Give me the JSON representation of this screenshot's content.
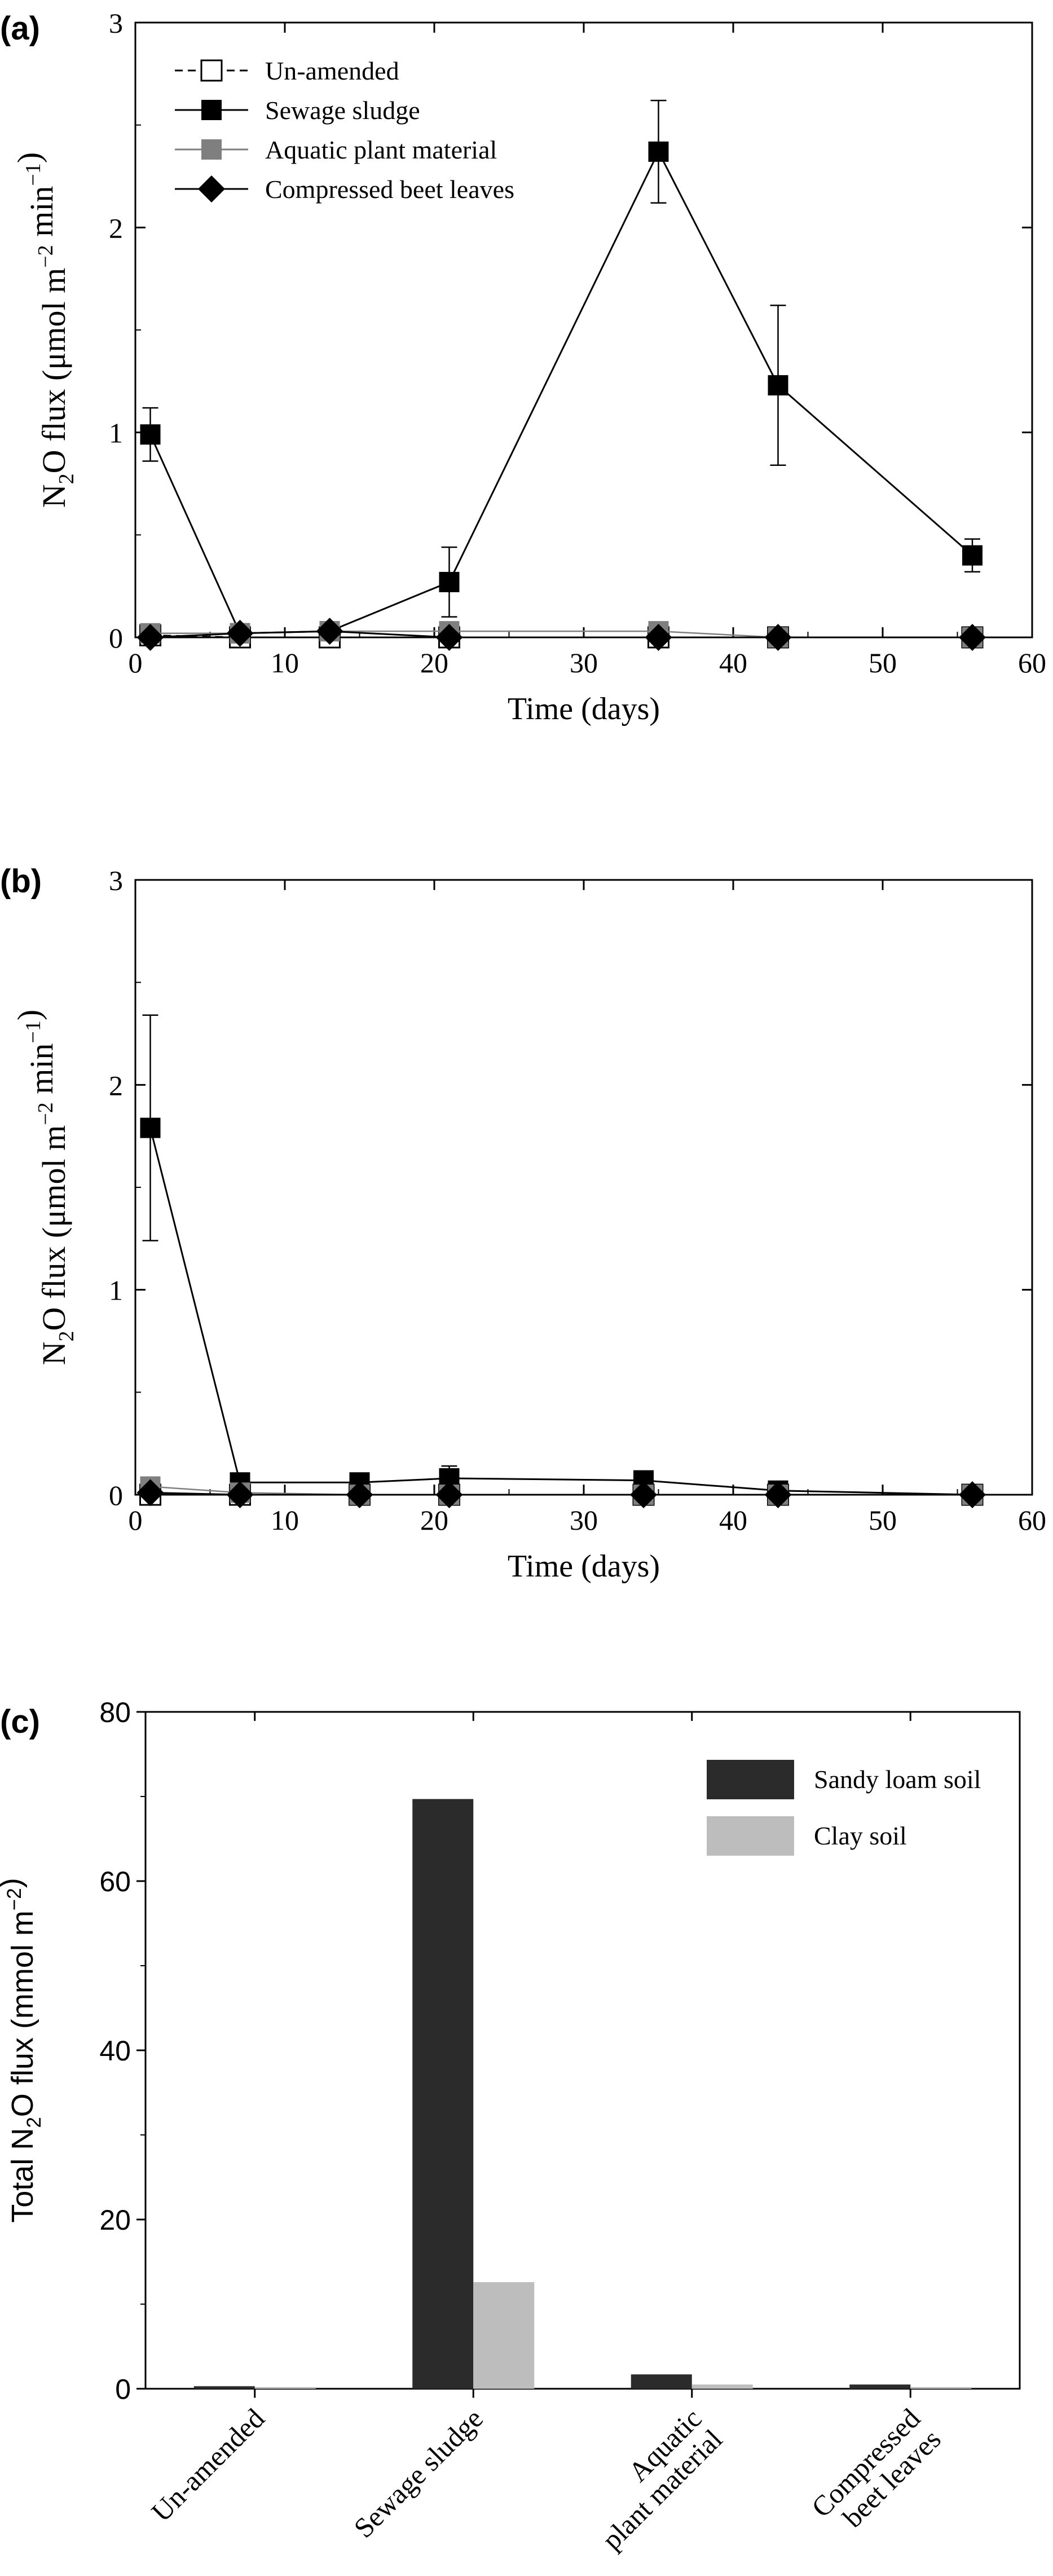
{
  "chart_data": [
    {
      "panel_label": "(a)",
      "type": "line",
      "xlabel": "Time (days)",
      "ylabel": "N2O  flux (μmol m−2 min−1)",
      "xlim": [
        0,
        60
      ],
      "ylim": [
        0,
        3
      ],
      "xticks": [
        0,
        10,
        20,
        30,
        40,
        50,
        60
      ],
      "yticks": [
        0,
        1,
        2,
        3
      ],
      "grid": false,
      "legend_placement": "top-left",
      "series": [
        {
          "name": "Un-amended",
          "color": "#000000",
          "marker": "square-open",
          "line": "dashed",
          "x": [
            1,
            7,
            13,
            21,
            35,
            43,
            56
          ],
          "y": [
            0.01,
            0.0,
            0.0,
            0.0,
            0.0,
            0.0,
            0.0
          ],
          "err": [
            0,
            0,
            0,
            0,
            0,
            0,
            0
          ]
        },
        {
          "name": "Sewage sludge",
          "color": "#000000",
          "marker": "square",
          "line": "solid",
          "x": [
            1,
            7,
            13,
            21,
            35,
            43,
            56
          ],
          "y": [
            0.99,
            0.02,
            0.03,
            0.27,
            2.37,
            1.23,
            0.4
          ],
          "err": [
            0.13,
            0,
            0,
            0.17,
            0.25,
            0.39,
            0.08
          ]
        },
        {
          "name": "Aquatic plant material",
          "color": "#7f7f7f",
          "marker": "square",
          "line": "solid",
          "x": [
            1,
            7,
            13,
            21,
            35,
            43,
            56
          ],
          "y": [
            0.02,
            0.02,
            0.03,
            0.03,
            0.03,
            0.0,
            0.0
          ],
          "err": [
            0,
            0,
            0,
            0,
            0,
            0,
            0
          ]
        },
        {
          "name": "Compressed beet leaves",
          "color": "#000000",
          "marker": "diamond",
          "line": "solid",
          "x": [
            1,
            7,
            13,
            21,
            35,
            43,
            56
          ],
          "y": [
            0.0,
            0.02,
            0.03,
            0.0,
            0.0,
            0.0,
            0.0
          ],
          "err": [
            0,
            0,
            0,
            0,
            0,
            0,
            0
          ]
        }
      ]
    },
    {
      "panel_label": "(b)",
      "type": "line",
      "xlabel": "Time (days)",
      "ylabel": "N2O  flux (μmol m−2 min−1)",
      "xlim": [
        0,
        60
      ],
      "ylim": [
        0,
        3
      ],
      "xticks": [
        0,
        10,
        20,
        30,
        40,
        50,
        60
      ],
      "yticks": [
        0,
        1,
        2,
        3
      ],
      "grid": false,
      "series": [
        {
          "name": "Un-amended",
          "color": "#000000",
          "marker": "square-open",
          "line": "dashed",
          "x": [
            1,
            7,
            15,
            21,
            34,
            43,
            56
          ],
          "y": [
            0.0,
            0.0,
            0.0,
            0.0,
            0.0,
            0.0,
            0.0
          ],
          "err": [
            0,
            0,
            0,
            0,
            0,
            0,
            0
          ]
        },
        {
          "name": "Sewage sludge",
          "color": "#000000",
          "marker": "square",
          "line": "solid",
          "x": [
            1,
            7,
            15,
            21,
            34,
            43,
            56
          ],
          "y": [
            1.79,
            0.06,
            0.06,
            0.08,
            0.07,
            0.02,
            0.0
          ],
          "err": [
            0.55,
            0,
            0,
            0.06,
            0,
            0,
            0
          ]
        },
        {
          "name": "Aquatic plant material",
          "color": "#7f7f7f",
          "marker": "square",
          "line": "solid",
          "x": [
            1,
            7,
            15,
            21,
            34,
            43,
            56
          ],
          "y": [
            0.04,
            0.01,
            0.0,
            0.0,
            0.0,
            0.0,
            0.0
          ],
          "err": [
            0,
            0,
            0,
            0,
            0,
            0,
            0
          ]
        },
        {
          "name": "Compressed beet leaves",
          "color": "#000000",
          "marker": "diamond",
          "line": "solid",
          "x": [
            1,
            7,
            15,
            21,
            34,
            43,
            56
          ],
          "y": [
            0.01,
            0.0,
            0.0,
            0.0,
            0.0,
            0.0,
            0.0
          ],
          "err": [
            0,
            0,
            0,
            0,
            0,
            0,
            0
          ]
        }
      ]
    },
    {
      "panel_label": "(c)",
      "type": "bar",
      "ylabel": "Total N2O flux (mmol m−2)",
      "ylim": [
        0,
        80
      ],
      "yticks": [
        0,
        20,
        40,
        60,
        80
      ],
      "grid": false,
      "legend_placement": "top-right",
      "categories": [
        "Un-amended",
        "Sewage sludge",
        "Aquatic plant material",
        "Compressed beet leaves"
      ],
      "series": [
        {
          "name": "Sandy loam soil",
          "color": "#2b2b2b",
          "values": [
            0.3,
            69.7,
            1.7,
            0.5
          ]
        },
        {
          "name": "Clay soil",
          "color": "#bdbdbd",
          "values": [
            0.2,
            12.6,
            0.5,
            0.2
          ]
        }
      ]
    }
  ]
}
